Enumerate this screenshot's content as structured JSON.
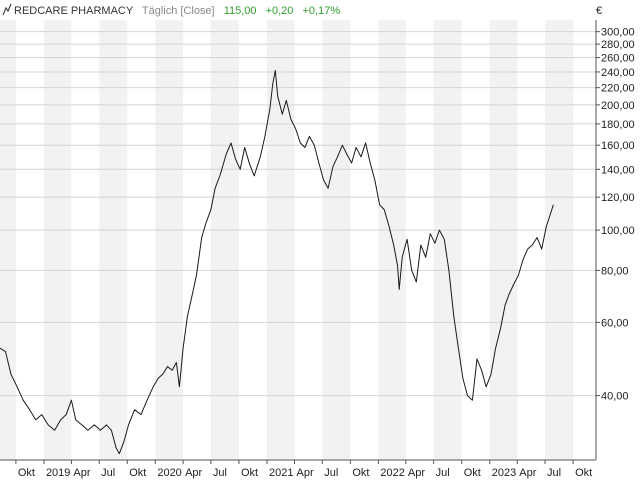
{
  "header": {
    "name": "REDCARE PHARMACY",
    "interval": "Täglich [Close]",
    "last": "115,00",
    "change": "+0,20",
    "change_pct": "+0,17%"
  },
  "currency_label": "€",
  "colors": {
    "line": "#1a1a1a",
    "positive": "#2e9e2e",
    "muted": "#8a8a8a",
    "band": "#f2f2f2",
    "grid": "#d4d4d4"
  },
  "chart_data": {
    "type": "line",
    "y_scale": "log",
    "ylim": [
      28,
      320
    ],
    "y_ticks": [
      {
        "v": 300,
        "label": "300,00"
      },
      {
        "v": 280,
        "label": "280,00"
      },
      {
        "v": 260,
        "label": "260,00"
      },
      {
        "v": 240,
        "label": "240,00"
      },
      {
        "v": 220,
        "label": "220,00"
      },
      {
        "v": 200,
        "label": "200,00"
      },
      {
        "v": 180,
        "label": "180,00"
      },
      {
        "v": 160,
        "label": "160,00"
      },
      {
        "v": 140,
        "label": "140,00"
      },
      {
        "v": 120,
        "label": "120,00"
      },
      {
        "v": 100,
        "label": "100,00"
      },
      {
        "v": 80,
        "label": "80,00"
      },
      {
        "v": 60,
        "label": "60,00"
      },
      {
        "v": 40,
        "label": "40,00"
      }
    ],
    "x_ticks": [
      {
        "t": "2018-10-01",
        "label": "Okt"
      },
      {
        "t": "2019-01-01",
        "label": "2019"
      },
      {
        "t": "2019-04-01",
        "label": "Apr"
      },
      {
        "t": "2019-07-01",
        "label": "Jul"
      },
      {
        "t": "2019-10-01",
        "label": "Okt"
      },
      {
        "t": "2020-01-01",
        "label": "2020"
      },
      {
        "t": "2020-04-01",
        "label": "Apr"
      },
      {
        "t": "2020-07-01",
        "label": "Jul"
      },
      {
        "t": "2020-10-01",
        "label": "Okt"
      },
      {
        "t": "2021-01-01",
        "label": "2021"
      },
      {
        "t": "2021-04-01",
        "label": "Apr"
      },
      {
        "t": "2021-07-01",
        "label": "Jul"
      },
      {
        "t": "2021-10-01",
        "label": "Okt"
      },
      {
        "t": "2022-01-01",
        "label": "2022"
      },
      {
        "t": "2022-04-01",
        "label": "Apr"
      },
      {
        "t": "2022-07-01",
        "label": "Jul"
      },
      {
        "t": "2022-10-01",
        "label": "Okt"
      },
      {
        "t": "2023-01-01",
        "label": "2023"
      },
      {
        "t": "2023-04-01",
        "label": "Apr"
      },
      {
        "t": "2023-07-01",
        "label": "Jul"
      },
      {
        "t": "2023-10-01",
        "label": "Okt"
      }
    ],
    "xlim": [
      "2018-08-10",
      "2023-12-15"
    ],
    "series": [
      {
        "points": [
          [
            "2018-08-10",
            52
          ],
          [
            "2018-08-28",
            51
          ],
          [
            "2018-09-15",
            45
          ],
          [
            "2018-10-05",
            42
          ],
          [
            "2018-10-25",
            39
          ],
          [
            "2018-11-15",
            37
          ],
          [
            "2018-12-05",
            35
          ],
          [
            "2018-12-25",
            36
          ],
          [
            "2019-01-15",
            34
          ],
          [
            "2019-02-05",
            33
          ],
          [
            "2019-02-25",
            35
          ],
          [
            "2019-03-15",
            36
          ],
          [
            "2019-04-01",
            39
          ],
          [
            "2019-04-15",
            35
          ],
          [
            "2019-05-05",
            34
          ],
          [
            "2019-05-25",
            33
          ],
          [
            "2019-06-15",
            34
          ],
          [
            "2019-07-05",
            33
          ],
          [
            "2019-07-25",
            34
          ],
          [
            "2019-08-10",
            33
          ],
          [
            "2019-08-25",
            30
          ],
          [
            "2019-09-05",
            29
          ],
          [
            "2019-09-20",
            31
          ],
          [
            "2019-10-05",
            34
          ],
          [
            "2019-10-25",
            37
          ],
          [
            "2019-11-15",
            36
          ],
          [
            "2019-12-05",
            39
          ],
          [
            "2019-12-25",
            42
          ],
          [
            "2020-01-10",
            44
          ],
          [
            "2020-01-25",
            45
          ],
          [
            "2020-02-10",
            47
          ],
          [
            "2020-02-25",
            46
          ],
          [
            "2020-03-10",
            48
          ],
          [
            "2020-03-20",
            42
          ],
          [
            "2020-04-01",
            52
          ],
          [
            "2020-04-15",
            62
          ],
          [
            "2020-05-01",
            70
          ],
          [
            "2020-05-15",
            78
          ],
          [
            "2020-06-01",
            96
          ],
          [
            "2020-06-15",
            104
          ],
          [
            "2020-07-01",
            112
          ],
          [
            "2020-07-15",
            126
          ],
          [
            "2020-08-01",
            136
          ],
          [
            "2020-08-20",
            152
          ],
          [
            "2020-09-05",
            162
          ],
          [
            "2020-09-20",
            148
          ],
          [
            "2020-10-05",
            140
          ],
          [
            "2020-10-20",
            158
          ],
          [
            "2020-11-05",
            144
          ],
          [
            "2020-11-20",
            135
          ],
          [
            "2020-12-10",
            150
          ],
          [
            "2020-12-25",
            168
          ],
          [
            "2021-01-10",
            195
          ],
          [
            "2021-01-20",
            225
          ],
          [
            "2021-01-28",
            242
          ],
          [
            "2021-02-05",
            210
          ],
          [
            "2021-02-20",
            190
          ],
          [
            "2021-03-05",
            205
          ],
          [
            "2021-03-20",
            185
          ],
          [
            "2021-04-05",
            175
          ],
          [
            "2021-04-20",
            162
          ],
          [
            "2021-05-05",
            158
          ],
          [
            "2021-05-20",
            168
          ],
          [
            "2021-06-05",
            160
          ],
          [
            "2021-06-20",
            145
          ],
          [
            "2021-07-05",
            132
          ],
          [
            "2021-07-20",
            126
          ],
          [
            "2021-08-05",
            142
          ],
          [
            "2021-08-20",
            150
          ],
          [
            "2021-09-05",
            160
          ],
          [
            "2021-09-20",
            152
          ],
          [
            "2021-10-05",
            145
          ],
          [
            "2021-10-20",
            158
          ],
          [
            "2021-11-05",
            150
          ],
          [
            "2021-11-20",
            162
          ],
          [
            "2021-12-05",
            145
          ],
          [
            "2021-12-20",
            132
          ],
          [
            "2022-01-05",
            115
          ],
          [
            "2022-01-20",
            112
          ],
          [
            "2022-02-05",
            102
          ],
          [
            "2022-02-20",
            92
          ],
          [
            "2022-03-05",
            82
          ],
          [
            "2022-03-10",
            72
          ],
          [
            "2022-03-20",
            86
          ],
          [
            "2022-04-05",
            95
          ],
          [
            "2022-04-20",
            80
          ],
          [
            "2022-05-05",
            75
          ],
          [
            "2022-05-20",
            92
          ],
          [
            "2022-06-05",
            86
          ],
          [
            "2022-06-20",
            98
          ],
          [
            "2022-07-05",
            93
          ],
          [
            "2022-07-20",
            100
          ],
          [
            "2022-08-05",
            95
          ],
          [
            "2022-08-20",
            80
          ],
          [
            "2022-09-05",
            62
          ],
          [
            "2022-09-20",
            52
          ],
          [
            "2022-10-05",
            44
          ],
          [
            "2022-10-20",
            40
          ],
          [
            "2022-11-05",
            39
          ],
          [
            "2022-11-20",
            49
          ],
          [
            "2022-12-05",
            46
          ],
          [
            "2022-12-20",
            42
          ],
          [
            "2023-01-05",
            45
          ],
          [
            "2023-01-20",
            52
          ],
          [
            "2023-02-05",
            58
          ],
          [
            "2023-02-20",
            66
          ],
          [
            "2023-03-05",
            70
          ],
          [
            "2023-03-20",
            74
          ],
          [
            "2023-04-05",
            78
          ],
          [
            "2023-04-20",
            85
          ],
          [
            "2023-05-05",
            90
          ],
          [
            "2023-05-20",
            92
          ],
          [
            "2023-06-05",
            96
          ],
          [
            "2023-06-20",
            90
          ],
          [
            "2023-07-05",
            102
          ],
          [
            "2023-07-20",
            110
          ],
          [
            "2023-07-28",
            115
          ]
        ]
      }
    ]
  }
}
